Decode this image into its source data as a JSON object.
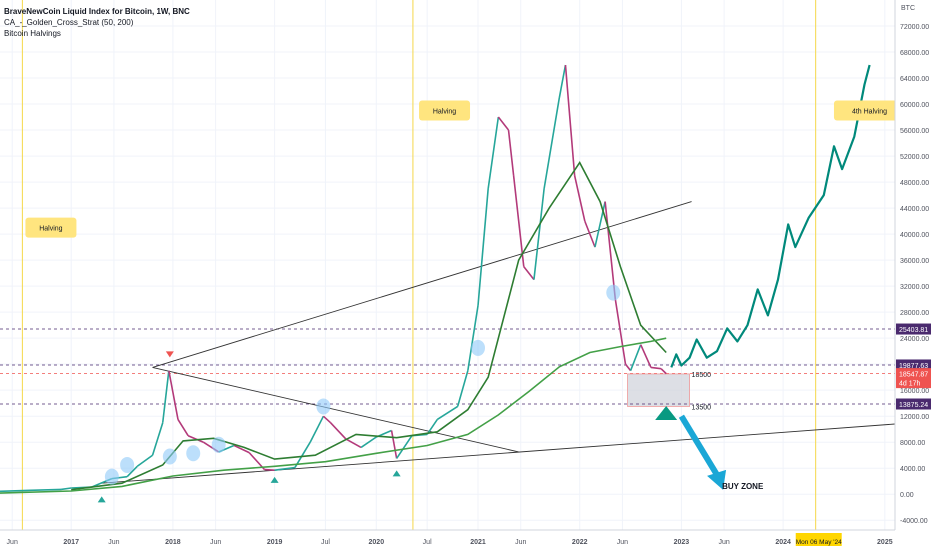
{
  "header": {
    "title": "BraveNewCoin Liquid Index for Bitcoin, 1W, BNC",
    "indicator": "CA_-_Golden_Cross_Strat (50, 200)",
    "study": "Bitcoin Halvings"
  },
  "chart_data": {
    "type": "line",
    "y_axis_label": "BTC",
    "ylim": [
      -5500,
      76000
    ],
    "yticks": [
      -4000,
      0,
      4000,
      8000,
      12000,
      16000,
      20000,
      24000,
      28000,
      32000,
      36000,
      40000,
      44000,
      48000,
      52000,
      56000,
      60000,
      64000,
      68000,
      72000
    ],
    "ytick_labels": [
      "-4000.00",
      "0.00",
      "4000.00",
      "8000.00",
      "12000.00",
      "16000.00",
      "20000.00",
      "24000.00",
      "28000.00",
      "32000.00",
      "36000.00",
      "40000.00",
      "44000.00",
      "48000.00",
      "52000.00",
      "56000.00",
      "60000.00",
      "64000.00",
      "68000.00",
      "72000.00"
    ],
    "x_range": [
      2016.3,
      2025.1
    ],
    "xticks": [
      {
        "t": 2016.42,
        "label": "Jun"
      },
      {
        "t": 2017.0,
        "label": "2017"
      },
      {
        "t": 2017.42,
        "label": "Jun"
      },
      {
        "t": 2018.0,
        "label": "2018"
      },
      {
        "t": 2018.42,
        "label": "Jun"
      },
      {
        "t": 2019.0,
        "label": "2019"
      },
      {
        "t": 2019.5,
        "label": "Jul"
      },
      {
        "t": 2020.0,
        "label": "2020"
      },
      {
        "t": 2020.5,
        "label": "Jul"
      },
      {
        "t": 2021.0,
        "label": "2021"
      },
      {
        "t": 2021.42,
        "label": "Jun"
      },
      {
        "t": 2022.0,
        "label": "2022"
      },
      {
        "t": 2022.42,
        "label": "Jun"
      },
      {
        "t": 2023.0,
        "label": "2023"
      },
      {
        "t": 2023.42,
        "label": "Jun"
      },
      {
        "t": 2024.0,
        "label": "2024"
      },
      {
        "t": 2025.0,
        "label": "2025"
      }
    ],
    "price_series": [
      [
        2016.3,
        450
      ],
      [
        2016.6,
        600
      ],
      [
        2016.9,
        740
      ],
      [
        2017.0,
        960
      ],
      [
        2017.2,
        1100
      ],
      [
        2017.4,
        2400
      ],
      [
        2017.55,
        2700
      ],
      [
        2017.65,
        4300
      ],
      [
        2017.8,
        6000
      ],
      [
        2017.9,
        11000
      ],
      [
        2017.96,
        19000
      ],
      [
        2018.05,
        11500
      ],
      [
        2018.15,
        9000
      ],
      [
        2018.3,
        8000
      ],
      [
        2018.45,
        6500
      ],
      [
        2018.6,
        7500
      ],
      [
        2018.75,
        6400
      ],
      [
        2018.9,
        3800
      ],
      [
        2019.0,
        3700
      ],
      [
        2019.2,
        4100
      ],
      [
        2019.35,
        8000
      ],
      [
        2019.48,
        12000
      ],
      [
        2019.55,
        11000
      ],
      [
        2019.7,
        8500
      ],
      [
        2019.85,
        7200
      ],
      [
        2020.0,
        8800
      ],
      [
        2020.15,
        9800
      ],
      [
        2020.2,
        5500
      ],
      [
        2020.35,
        9000
      ],
      [
        2020.5,
        9200
      ],
      [
        2020.6,
        11500
      ],
      [
        2020.8,
        13500
      ],
      [
        2020.9,
        19000
      ],
      [
        2021.0,
        29000
      ],
      [
        2021.1,
        47000
      ],
      [
        2021.2,
        58000
      ],
      [
        2021.3,
        56000
      ],
      [
        2021.35,
        49000
      ],
      [
        2021.45,
        35000
      ],
      [
        2021.55,
        33000
      ],
      [
        2021.65,
        47000
      ],
      [
        2021.8,
        61000
      ],
      [
        2021.86,
        66000
      ],
      [
        2021.95,
        49000
      ],
      [
        2022.05,
        42000
      ],
      [
        2022.15,
        38000
      ],
      [
        2022.25,
        45000
      ],
      [
        2022.35,
        30000
      ],
      [
        2022.45,
        20000
      ],
      [
        2022.5,
        19000
      ],
      [
        2022.6,
        23000
      ],
      [
        2022.7,
        19500
      ],
      [
        2022.8,
        19300
      ],
      [
        2022.85,
        18548
      ]
    ],
    "ma_50": [
      [
        2017.0,
        700
      ],
      [
        2017.5,
        1700
      ],
      [
        2017.9,
        4500
      ],
      [
        2018.1,
        8200
      ],
      [
        2018.4,
        8600
      ],
      [
        2018.7,
        7200
      ],
      [
        2019.0,
        5400
      ],
      [
        2019.4,
        6000
      ],
      [
        2019.8,
        9200
      ],
      [
        2020.2,
        8700
      ],
      [
        2020.6,
        9600
      ],
      [
        2020.9,
        13000
      ],
      [
        2021.1,
        18000
      ],
      [
        2021.4,
        36000
      ],
      [
        2021.7,
        44000
      ],
      [
        2022.0,
        51000
      ],
      [
        2022.2,
        45000
      ],
      [
        2022.4,
        35000
      ],
      [
        2022.6,
        26000
      ],
      [
        2022.85,
        21800
      ]
    ],
    "ma_200": [
      [
        2016.3,
        180
      ],
      [
        2017.0,
        500
      ],
      [
        2017.5,
        1200
      ],
      [
        2018.0,
        2800
      ],
      [
        2018.5,
        3700
      ],
      [
        2019.0,
        4300
      ],
      [
        2019.5,
        5000
      ],
      [
        2020.0,
        6300
      ],
      [
        2020.5,
        7500
      ],
      [
        2020.9,
        9200
      ],
      [
        2021.2,
        12200
      ],
      [
        2021.5,
        15800
      ],
      [
        2021.8,
        19600
      ],
      [
        2022.1,
        21800
      ],
      [
        2022.4,
        22700
      ],
      [
        2022.7,
        23500
      ],
      [
        2022.85,
        24000
      ]
    ],
    "projection": [
      [
        2022.9,
        19500
      ],
      [
        2022.95,
        21500
      ],
      [
        2023.0,
        19800
      ],
      [
        2023.08,
        21000
      ],
      [
        2023.15,
        23800
      ],
      [
        2023.25,
        21000
      ],
      [
        2023.35,
        22000
      ],
      [
        2023.45,
        25500
      ],
      [
        2023.55,
        23500
      ],
      [
        2023.65,
        26000
      ],
      [
        2023.75,
        31500
      ],
      [
        2023.85,
        27500
      ],
      [
        2023.95,
        33000
      ],
      [
        2024.05,
        41500
      ],
      [
        2024.12,
        38000
      ],
      [
        2024.25,
        42500
      ],
      [
        2024.4,
        46000
      ],
      [
        2024.5,
        53500
      ],
      [
        2024.58,
        50000
      ],
      [
        2024.7,
        55000
      ],
      [
        2024.8,
        63000
      ],
      [
        2024.85,
        66000
      ]
    ],
    "horizontal_levels": [
      {
        "value": 25403.81,
        "label": "25403.81",
        "color": "#4a2a6e"
      },
      {
        "value": 19877.63,
        "label": "19877.63",
        "color": "#4a2a6e"
      },
      {
        "value": 18547.87,
        "label": "18547.87",
        "sublabel": "4d 17h",
        "color": "#ef5350"
      },
      {
        "value": 13875.24,
        "label": "13875.24",
        "color": "#4a2a6e"
      }
    ],
    "buy_zone": {
      "t1": 2022.47,
      "t2": 2023.08,
      "y_top": 18500,
      "y_bottom": 13500,
      "top_label": "18500",
      "bottom_label": "13500",
      "label": "BUY ZONE"
    },
    "trendlines": [
      {
        "t1": 2017.8,
        "v1": 19500,
        "t2": 2023.1,
        "v2": 45000,
        "color": "#333333"
      },
      {
        "t1": 2017.8,
        "v1": 19500,
        "t2": 2021.4,
        "v2": 6500,
        "color": "#333333"
      },
      {
        "t1": 2017.3,
        "v1": 1700,
        "t2": 2025.1,
        "v2": 10800,
        "color": "#333333"
      }
    ],
    "markers": [
      {
        "t": 2017.3,
        "v": -800,
        "kind": "up",
        "color": "#26a69a"
      },
      {
        "t": 2019.0,
        "v": 2200,
        "kind": "up",
        "color": "#26a69a"
      },
      {
        "t": 2020.2,
        "v": 3200,
        "kind": "up",
        "color": "#26a69a"
      },
      {
        "t": 2017.97,
        "v": 21500,
        "kind": "down",
        "color": "#ef5350"
      },
      {
        "t": 2022.85,
        "v": 12500,
        "kind": "up-big",
        "color": "#089981"
      }
    ],
    "circles": [
      [
        2017.4,
        2700
      ],
      [
        2017.55,
        4500
      ],
      [
        2017.97,
        5800
      ],
      [
        2018.2,
        6300
      ],
      [
        2018.45,
        7600
      ],
      [
        2019.48,
        13500
      ],
      [
        2021.0,
        22500
      ],
      [
        2022.33,
        31000
      ]
    ],
    "halvings": [
      {
        "t": 2016.52,
        "label": "Halving",
        "box_t": 2016.55,
        "box_v": 41000
      },
      {
        "t": 2020.36,
        "label": "Halving",
        "box_t": 2020.42,
        "box_v": 59000
      },
      {
        "t": 2024.32,
        "label": "4th Halving",
        "box_t": 2024.5,
        "box_v": 59000
      }
    ],
    "date_marker": {
      "t": 2024.35,
      "label": "Mon 06 May '24"
    }
  }
}
